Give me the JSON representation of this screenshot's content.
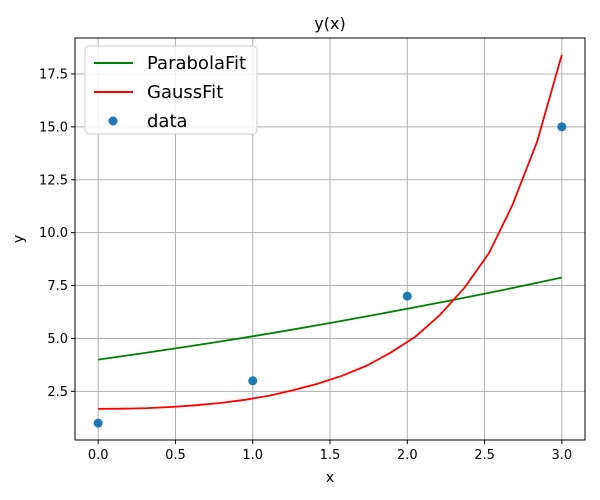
{
  "chart_data": {
    "type": "line",
    "title": "y(x)",
    "xlabel": "x",
    "ylabel": "y",
    "xlim": [
      -0.15,
      3.15
    ],
    "ylim": [
      0.2,
      19.2
    ],
    "xticks": [
      0.0,
      0.5,
      1.0,
      1.5,
      2.0,
      2.5,
      3.0
    ],
    "xtick_labels": [
      "0.0",
      "0.5",
      "1.0",
      "1.5",
      "2.0",
      "2.5",
      "3.0"
    ],
    "yticks": [
      2.5,
      5.0,
      7.5,
      10.0,
      12.5,
      15.0,
      17.5
    ],
    "ytick_labels": [
      "2.5",
      "5.0",
      "7.5",
      "10.0",
      "12.5",
      "15.0",
      "17.5"
    ],
    "grid": true,
    "legend_position": "top-left",
    "series": [
      {
        "name": "ParabolaFit",
        "kind": "line",
        "color": "#008000",
        "x": [
          0.0,
          0.25,
          0.5,
          0.75,
          1.0,
          1.25,
          1.5,
          1.75,
          2.0,
          2.25,
          2.5,
          2.75,
          3.0
        ],
        "y": [
          4.0,
          4.26,
          4.53,
          4.81,
          5.1,
          5.41,
          5.73,
          6.06,
          6.4,
          6.75,
          7.11,
          7.49,
          7.88
        ]
      },
      {
        "name": "GaussFit",
        "kind": "line",
        "color": "#ff0000",
        "x": [
          0.0,
          0.16,
          0.32,
          0.47,
          0.63,
          0.79,
          0.95,
          1.11,
          1.26,
          1.42,
          1.58,
          1.74,
          1.89,
          2.05,
          2.21,
          2.37,
          2.53,
          2.68,
          2.84,
          3.0
        ],
        "y": [
          1.67,
          1.68,
          1.71,
          1.76,
          1.84,
          1.95,
          2.1,
          2.3,
          2.55,
          2.86,
          3.24,
          3.72,
          4.32,
          5.07,
          6.1,
          7.4,
          9.05,
          11.3,
          14.3,
          18.4
        ]
      },
      {
        "name": "data",
        "kind": "scatter",
        "color": "#1f77b4",
        "x": [
          0,
          1,
          2,
          3
        ],
        "y": [
          1,
          3,
          7,
          15
        ]
      }
    ]
  }
}
